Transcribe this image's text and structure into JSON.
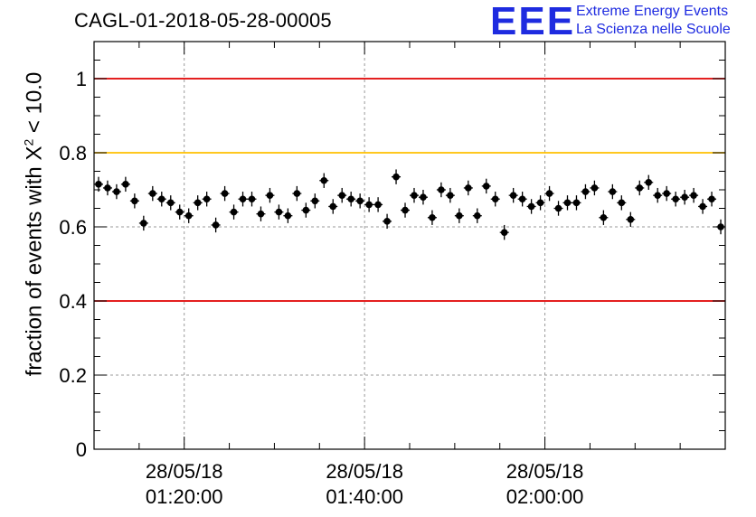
{
  "title": "CAGL-01-2018-05-28-00005",
  "logo": {
    "mark": "EEE",
    "line1": "Extreme Energy Events",
    "line2": "La Scienza nelle Scuole",
    "color": "#1e2be0"
  },
  "chart_data": {
    "type": "scatter",
    "title": "CAGL-01-2018-05-28-00005",
    "xlabel": "",
    "ylabel": {
      "prefix": "fraction of events with ",
      "symbol": "X",
      "superscript": "2",
      "suffix": " < 10.0"
    },
    "x_unit": "minutes after 28/05/18 01:10:00",
    "xlim": [
      0,
      70
    ],
    "ylim": [
      0,
      1.1
    ],
    "y_ticks": [
      0,
      0.2,
      0.4,
      0.6,
      0.8,
      1
    ],
    "y_tick_labels": [
      "0",
      "0.2",
      "0.4",
      "0.6",
      "0.8",
      "1"
    ],
    "x_ticks": [
      10,
      30,
      50
    ],
    "x_tick_labels": [
      [
        "28/05/18",
        "01:20:00"
      ],
      [
        "28/05/18",
        "01:40:00"
      ],
      [
        "28/05/18",
        "02:00:00"
      ]
    ],
    "grid": true,
    "error_bar": 0.02,
    "reference_lines": [
      {
        "y": 1.0,
        "color": "#e00000"
      },
      {
        "y": 0.8,
        "color": "#ffc000"
      },
      {
        "y": 0.4,
        "color": "#e00000"
      }
    ],
    "series": [
      {
        "x": [
          0.5,
          1.5,
          2.5,
          3.5,
          4.5,
          5.5,
          6.5,
          7.5,
          8.5,
          9.5,
          10.5,
          11.5,
          12.5,
          13.5,
          14.5,
          15.5,
          16.5,
          17.5,
          18.5,
          19.5,
          20.5,
          21.5,
          22.5,
          23.5,
          24.5,
          25.5,
          26.5,
          27.5,
          28.5,
          29.5,
          30.5,
          31.5,
          32.5,
          33.5,
          34.5,
          35.5,
          36.5,
          37.5,
          38.5,
          39.5,
          40.5,
          41.5,
          42.5,
          43.5,
          44.5,
          45.5,
          46.5,
          47.5,
          48.5,
          49.5,
          50.5,
          51.5,
          52.5,
          53.5,
          54.5,
          55.5,
          56.5,
          57.5,
          58.5,
          59.5,
          60.5,
          61.5,
          62.5,
          63.5,
          64.5,
          65.5,
          66.5,
          67.5,
          68.5,
          69.5
        ],
        "y": [
          0.715,
          0.705,
          0.695,
          0.715,
          0.67,
          0.61,
          0.69,
          0.675,
          0.665,
          0.64,
          0.63,
          0.665,
          0.675,
          0.605,
          0.69,
          0.64,
          0.675,
          0.675,
          0.635,
          0.685,
          0.64,
          0.63,
          0.69,
          0.645,
          0.67,
          0.725,
          0.655,
          0.685,
          0.675,
          0.67,
          0.66,
          0.66,
          0.615,
          0.735,
          0.645,
          0.685,
          0.68,
          0.625,
          0.7,
          0.685,
          0.63,
          0.705,
          0.63,
          0.71,
          0.675,
          0.585,
          0.685,
          0.675,
          0.655,
          0.665,
          0.69,
          0.65,
          0.665,
          0.665,
          0.695,
          0.705,
          0.625,
          0.695,
          0.665,
          0.62,
          0.705,
          0.72,
          0.685,
          0.69,
          0.675,
          0.68,
          0.685,
          0.655,
          0.675,
          0.6
        ]
      }
    ]
  }
}
